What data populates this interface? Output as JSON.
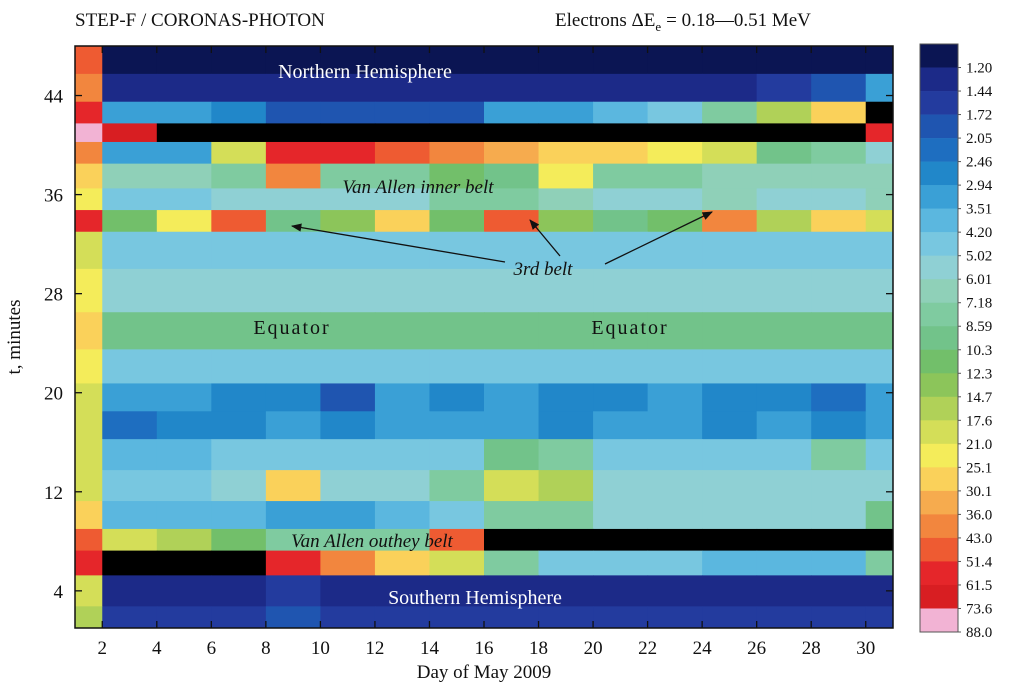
{
  "chart_data": {
    "type": "heatmap",
    "title": "STEP-F / CORONAS-PHOTON",
    "energy_label": {
      "text": "Electrons ΔE",
      "subscript": "e",
      "range": "= 0.18—0.51 MeV"
    },
    "x_label": "Day of May 2009",
    "y_label": "t, minutes",
    "xlim": [
      1,
      31
    ],
    "ylim": [
      1,
      48
    ],
    "xticks": [
      2,
      4,
      6,
      8,
      10,
      12,
      14,
      16,
      18,
      20,
      22,
      24,
      26,
      28,
      30
    ],
    "yticks": [
      4,
      12,
      20,
      28,
      36,
      44
    ],
    "annotations": [
      "Northern Hemisphere",
      "Van Allen inner belt",
      "3rd belt",
      "Equator",
      "Equator",
      "Van Allen outhey belt",
      "Southern Hemisphere"
    ],
    "levels": [
      {
        "value": 1.2,
        "label": "1.20"
      },
      1.44,
      1.72,
      2.05,
      2.46,
      2.94,
      3.51,
      {
        "value": 4.2,
        "label": "4.20"
      },
      5.02,
      6.01,
      7.18,
      8.59,
      10.3,
      12.3,
      14.7,
      17.6,
      {
        "value": 21,
        "label": "21.0"
      },
      25.1,
      30.1,
      {
        "value": 36,
        "label": "36.0"
      },
      {
        "value": 43,
        "label": "43.0"
      },
      51.4,
      61.5,
      73.6,
      {
        "value": 88,
        "label": "88.0"
      }
    ],
    "colors": [
      "#0b1553",
      "#1c2a88",
      "#233b9e",
      "#1f55b0",
      "#1e6ec0",
      "#2187c9",
      "#3aa0d6",
      "#5bb7df",
      "#78c7e0",
      "#8fd0d4",
      "#8fd0b8",
      "#7fcba0",
      "#72c38a",
      "#72bf6a",
      "#8cc55a",
      "#b0d158",
      "#d4de58",
      "#f4ec5a",
      "#fad15a",
      "#f6ab4e",
      "#f2863e",
      "#ee5b32",
      "#e5262a",
      "#d81e22",
      "#f2b3d4"
    ],
    "x": [
      1,
      3,
      5,
      7,
      9,
      11,
      13,
      15,
      17,
      19,
      21,
      23,
      25,
      27,
      29,
      31
    ],
    "y": [
      47,
      44.5,
      42.5,
      41,
      39.5,
      37.5,
      35.5,
      34,
      32,
      28,
      25,
      22,
      19.5,
      17.5,
      15,
      12.5,
      10,
      8,
      6.5,
      4,
      1.5
    ],
    "z": [
      [
        45,
        1.1,
        1.1,
        1.1,
        1.1,
        1.1,
        1.1,
        1.1,
        1.1,
        1.1,
        1.1,
        1.1,
        1.1,
        1.1,
        1.1,
        1.1
      ],
      [
        40,
        1.3,
        1.3,
        1.3,
        1.3,
        1.3,
        1.3,
        1.3,
        1.3,
        1.3,
        1.3,
        1.3,
        1.3,
        1.6,
        2,
        3
      ],
      [
        60,
        3,
        3,
        2.5,
        2,
        2,
        2,
        2,
        3,
        3,
        4,
        5,
        8,
        15,
        30,
        95
      ],
      [
        80,
        70,
        95,
        95,
        95,
        95,
        95,
        95,
        95,
        95,
        95,
        95,
        95,
        95,
        95,
        60
      ],
      [
        40,
        3,
        3,
        20,
        60,
        60,
        50,
        40,
        35,
        30,
        30,
        25,
        20,
        10,
        8,
        6
      ],
      [
        30,
        7,
        7,
        8,
        40,
        8,
        8,
        12,
        9,
        25,
        8,
        8,
        7,
        7,
        7,
        7
      ],
      [
        25,
        5,
        5,
        6,
        6,
        6,
        6,
        8,
        8,
        7,
        6,
        6,
        7,
        6,
        6,
        7
      ],
      [
        60,
        12,
        22,
        45,
        10,
        14,
        30,
        12,
        50,
        14,
        10,
        12,
        40,
        15,
        30,
        18
      ],
      [
        20,
        4.5,
        4.5,
        4.5,
        4.5,
        4.5,
        4.5,
        4.5,
        4.5,
        4.5,
        4.5,
        4.5,
        4.5,
        4.5,
        4.5,
        4.5
      ],
      [
        25,
        5.5,
        5.5,
        5.5,
        5.5,
        5.5,
        5.5,
        5.5,
        5.5,
        5.5,
        5.5,
        5.5,
        5.5,
        5.5,
        5.5,
        5.5
      ],
      [
        30,
        9,
        9,
        9,
        9,
        9,
        9,
        9,
        9,
        9,
        9,
        9,
        9,
        9,
        9,
        9
      ],
      [
        25,
        5,
        5,
        4.5,
        4.5,
        5,
        5,
        4.5,
        5,
        5,
        4.5,
        5,
        5,
        5,
        5,
        5
      ],
      [
        20,
        3,
        3,
        2.5,
        2.5,
        1.9,
        3,
        2.6,
        3,
        2.5,
        2.5,
        3,
        2.5,
        2.5,
        2.2,
        3
      ],
      [
        20,
        2.2,
        2.5,
        2.5,
        3,
        2.6,
        3,
        3,
        3,
        2.8,
        3,
        3,
        2.8,
        3,
        2.8,
        3
      ],
      [
        20,
        4,
        4,
        5,
        4.5,
        4.5,
        5,
        5,
        10,
        8,
        5,
        5,
        5,
        5,
        8,
        5
      ],
      [
        20,
        5,
        5,
        6,
        30,
        6,
        6,
        8,
        20,
        15,
        6,
        6,
        6,
        6,
        6,
        6
      ],
      [
        30,
        4,
        4,
        4,
        3.5,
        3.5,
        4,
        5,
        8,
        8,
        6,
        6,
        6,
        6,
        6,
        10
      ],
      [
        50,
        20,
        15,
        12,
        8,
        8,
        8,
        50,
        95,
        95,
        95,
        95,
        95,
        95,
        95,
        95
      ],
      [
        60,
        95,
        95,
        95,
        60,
        40,
        30,
        20,
        8,
        5,
        5,
        5,
        4,
        4,
        4,
        8
      ],
      [
        20,
        1.3,
        1.3,
        1.3,
        1.5,
        1.3,
        1.3,
        1.3,
        1.3,
        1.3,
        1.3,
        1.3,
        1.3,
        1.3,
        1.3,
        1.3
      ],
      [
        15,
        1.5,
        1.5,
        1.5,
        2,
        1.5,
        1.5,
        1.5,
        1.5,
        1.5,
        1.5,
        1.5,
        1.5,
        1.5,
        1.5,
        1.5
      ]
    ]
  }
}
